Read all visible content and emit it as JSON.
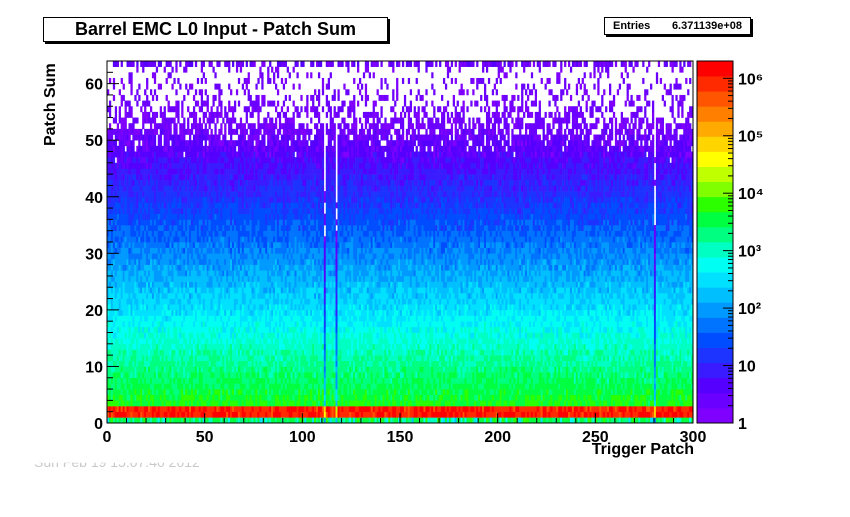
{
  "stats": {
    "label": "Entries",
    "value": "6.371139e+08"
  },
  "footer_stamp": "Sun Feb 19 15:07:40 2012",
  "chart_data": {
    "type": "heatmap",
    "title": "Barrel EMC L0 Input - Patch Sum",
    "xlabel": "Trigger Patch",
    "ylabel": "Patch Sum",
    "xlim": [
      0,
      300
    ],
    "ylim": [
      0,
      64
    ],
    "x_bins": 300,
    "y_bins": 64,
    "x_ticks": [
      0,
      50,
      100,
      150,
      200,
      250,
      300
    ],
    "y_ticks": [
      0,
      10,
      20,
      30,
      40,
      50,
      60
    ],
    "z_scale": "log",
    "zlim": [
      1,
      2000000
    ],
    "z_ticks": [
      {
        "value": 1,
        "label": "1"
      },
      {
        "value": 10,
        "label": "10"
      },
      {
        "value": 100,
        "label": "10²"
      },
      {
        "value": 1000,
        "label": "10³"
      },
      {
        "value": 10000,
        "label": "10⁴"
      },
      {
        "value": 100000,
        "label": "10⁵"
      },
      {
        "value": 1000000,
        "label": "10⁶"
      }
    ],
    "palette": [
      "#7f00ff",
      "#6a00ff",
      "#5500ff",
      "#3a1bff",
      "#1d33ff",
      "#004cff",
      "#0073ff",
      "#0099ff",
      "#00bfff",
      "#00e0ff",
      "#00fff2",
      "#00ffc2",
      "#00ff80",
      "#00ff40",
      "#2bff00",
      "#7fff00",
      "#bfff00",
      "#ffff00",
      "#ffd500",
      "#ffaa00",
      "#ff7f00",
      "#ff5500",
      "#ff2a00",
      "#ff0000"
    ],
    "grid": false,
    "description_of_distribution": {
      "peak_counts_at_patch_sum_0_to_2": 1000000,
      "counts_at_patch_sum_10": 300,
      "counts_at_patch_sum_20": 60,
      "counts_at_patch_sum_30": 12,
      "counts_at_patch_sum_40": 3,
      "sparse_above_patch_sum": 45,
      "overflow_row_patch_sum": 63,
      "low_patches": [
        111,
        117,
        280
      ]
    }
  }
}
